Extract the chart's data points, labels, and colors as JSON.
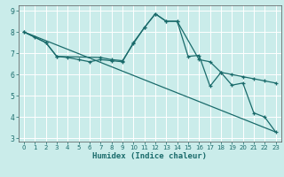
{
  "xlabel": "Humidex (Indice chaleur)",
  "background_color": "#caecea",
  "grid_color": "#ffffff",
  "line_color": "#1a6b6b",
  "xlim": [
    -0.5,
    23.5
  ],
  "ylim": [
    2.85,
    9.25
  ],
  "yticks": [
    3,
    4,
    5,
    6,
    7,
    8,
    9
  ],
  "xticks": [
    0,
    1,
    2,
    3,
    4,
    5,
    6,
    7,
    8,
    9,
    10,
    11,
    12,
    13,
    14,
    15,
    16,
    17,
    18,
    19,
    20,
    21,
    22,
    23
  ],
  "line1_x": [
    0,
    1,
    2,
    3,
    4,
    5,
    6,
    7,
    8,
    9,
    10,
    11,
    12,
    13,
    14,
    15,
    16,
    17,
    18,
    19,
    20,
    21,
    22,
    23
  ],
  "line1_y": [
    8.0,
    7.75,
    7.5,
    6.85,
    6.8,
    6.7,
    6.6,
    6.7,
    6.65,
    6.6,
    7.5,
    8.2,
    8.85,
    8.5,
    8.5,
    6.85,
    6.9,
    5.45,
    6.1,
    5.5,
    5.6,
    4.2,
    4.0,
    3.3
  ],
  "line2_x": [
    0,
    2,
    3,
    7,
    8,
    9,
    10,
    11,
    12,
    13,
    14,
    16,
    17,
    18,
    19,
    20,
    21,
    22,
    23
  ],
  "line2_y": [
    8.0,
    7.5,
    6.85,
    6.8,
    6.7,
    6.65,
    7.45,
    8.2,
    8.85,
    8.5,
    8.5,
    6.7,
    6.6,
    6.1,
    6.0,
    5.9,
    5.8,
    5.7,
    5.6
  ],
  "line3_x": [
    0,
    23
  ],
  "line3_y": [
    8.0,
    3.3
  ]
}
